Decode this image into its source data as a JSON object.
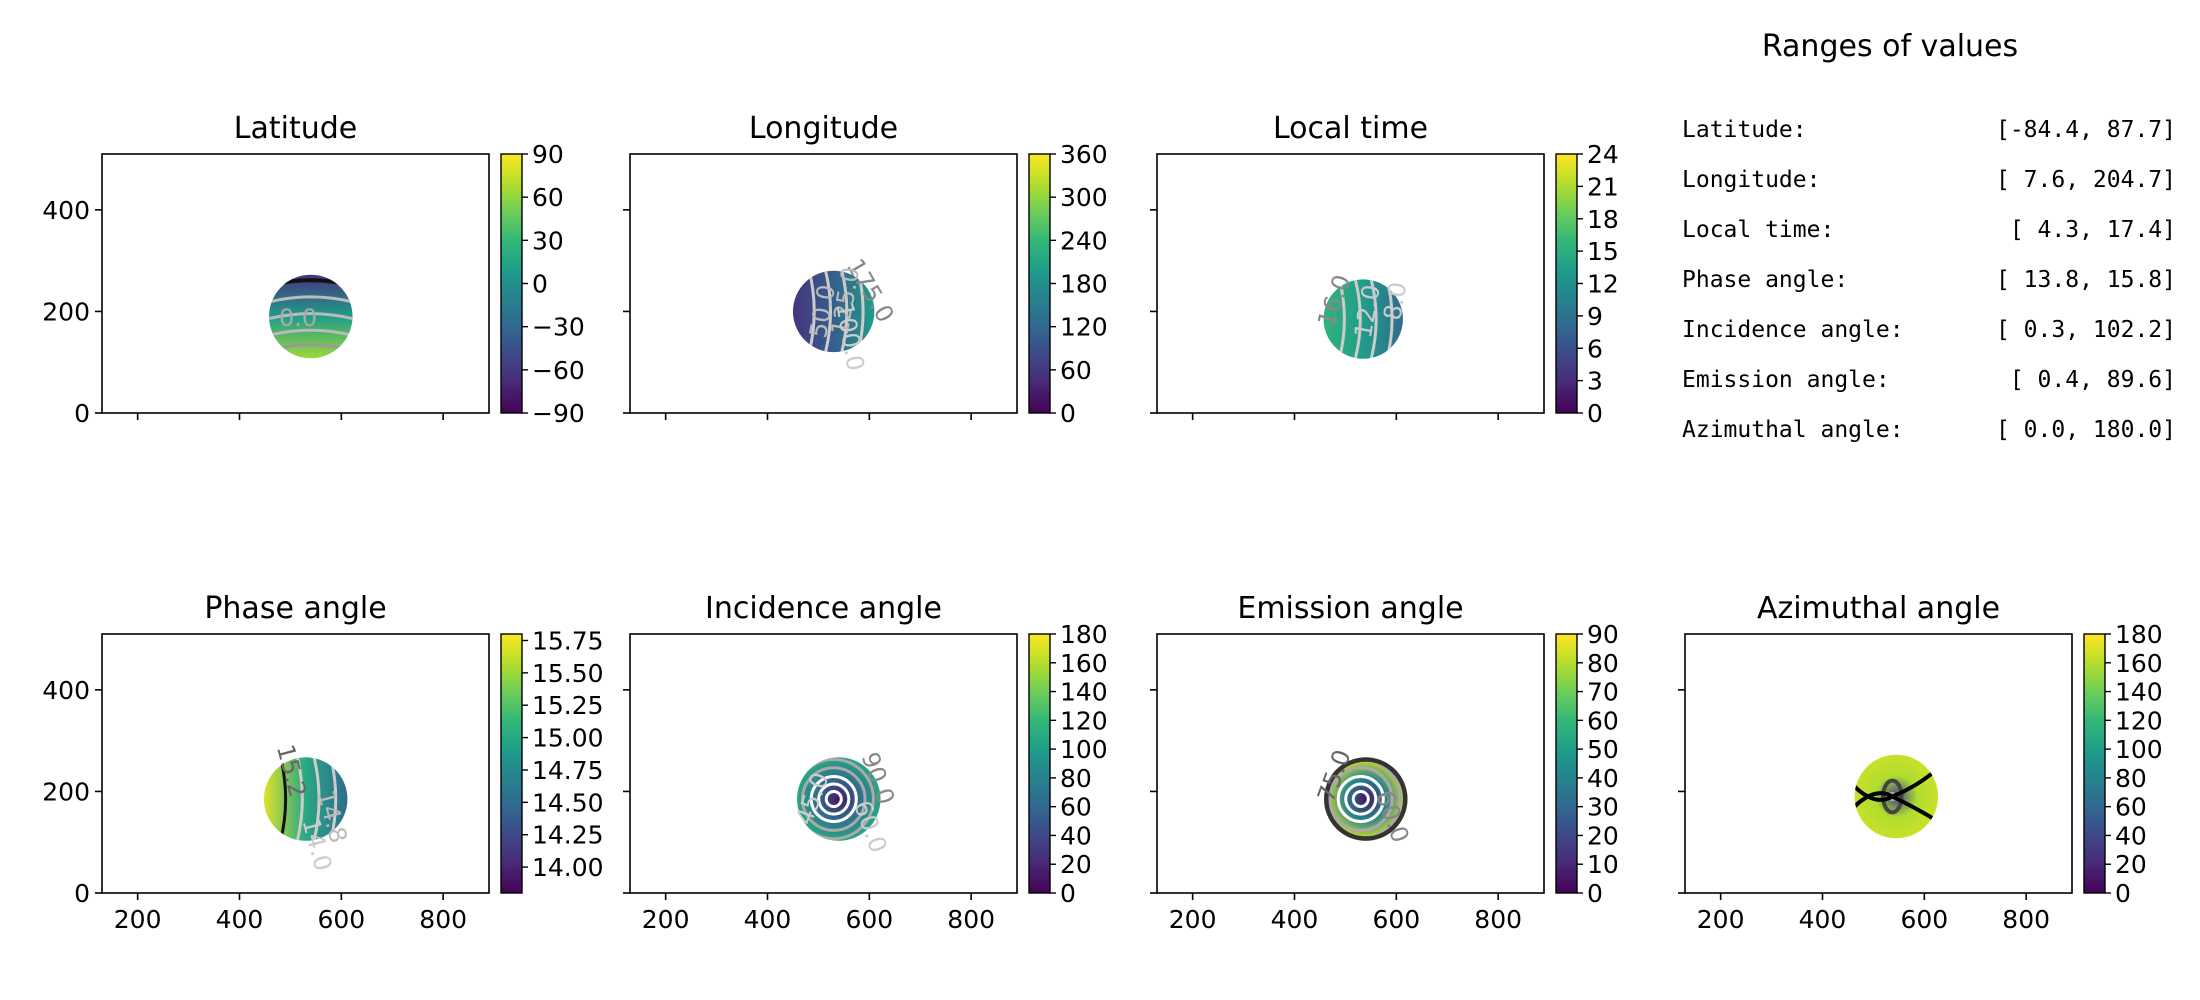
{
  "ranges_panel": {
    "title": "Ranges of values",
    "rows": [
      {
        "label": "Latitude:",
        "range": "[-84.4,  87.7]"
      },
      {
        "label": "Longitude:",
        "range": "[  7.6, 204.7]"
      },
      {
        "label": "Local time:",
        "range": "[  4.3,  17.4]"
      },
      {
        "label": "Phase angle:",
        "range": "[ 13.8,  15.8]"
      },
      {
        "label": "Incidence angle:",
        "range": "[  0.3, 102.2]"
      },
      {
        "label": "Emission angle:",
        "range": "[  0.4,  89.6]"
      },
      {
        "label": "Azimuthal angle:",
        "range": "[  0.0, 180.0]"
      }
    ]
  },
  "chart_data": [
    {
      "type": "heatmap",
      "title": "Latitude",
      "xlim": [
        130,
        890
      ],
      "ylim": [
        0,
        510
      ],
      "xticks": [
        200,
        400,
        600,
        800
      ],
      "yticks": [
        0,
        200,
        400
      ],
      "x_ticklabels_visible": false,
      "y_ticklabels_visible": true,
      "disk": {
        "center": [
          540,
          190
        ],
        "radius": 82
      },
      "colorbar": {
        "vmin": -90,
        "vmax": 90,
        "ticks": [
          -90,
          -60,
          -30,
          0,
          30,
          60,
          90
        ]
      },
      "contour_labels": [
        {
          "text": "0.0",
          "x": 515,
          "y": 185,
          "angle": 0,
          "color": "#aaaaaa"
        }
      ],
      "colormap": "viridis"
    },
    {
      "type": "heatmap",
      "title": "Longitude",
      "xlim": [
        130,
        890
      ],
      "ylim": [
        0,
        510
      ],
      "xticks": [
        200,
        400,
        600,
        800
      ],
      "yticks": [
        0,
        200,
        400
      ],
      "x_ticklabels_visible": false,
      "y_ticklabels_visible": false,
      "disk": {
        "center": [
          530,
          200
        ],
        "radius": 80
      },
      "colorbar": {
        "vmin": 0,
        "vmax": 360,
        "ticks": [
          0,
          60,
          120,
          180,
          240,
          300,
          360
        ]
      },
      "contour_labels": [
        {
          "text": "175.0",
          "x": 600,
          "y": 240,
          "angle": 60,
          "color": "#888888"
        },
        {
          "text": "125.0",
          "x": 555,
          "y": 220,
          "angle": -80,
          "color": "#bbbbbb"
        },
        {
          "text": "50.0",
          "x": 510,
          "y": 200,
          "angle": -80,
          "color": "#bbbbbb"
        },
        {
          "text": "100.0",
          "x": 560,
          "y": 150,
          "angle": 80,
          "color": "#cccccc"
        }
      ],
      "colormap": "viridis"
    },
    {
      "type": "heatmap",
      "title": "Local time",
      "xlim": [
        130,
        890
      ],
      "ylim": [
        0,
        510
      ],
      "xticks": [
        200,
        400,
        600,
        800
      ],
      "yticks": [
        0,
        200,
        400
      ],
      "x_ticklabels_visible": false,
      "y_ticklabels_visible": false,
      "disk": {
        "center": [
          535,
          185
        ],
        "radius": 78
      },
      "colorbar": {
        "vmin": 0,
        "vmax": 24,
        "ticks": [
          0,
          3,
          6,
          9,
          12,
          15,
          18,
          21,
          24
        ]
      },
      "contour_labels": [
        {
          "text": "16.0",
          "x": 480,
          "y": 220,
          "angle": -70,
          "color": "#888888"
        },
        {
          "text": "12.0",
          "x": 545,
          "y": 200,
          "angle": -80,
          "color": "#cccccc"
        },
        {
          "text": "8.0",
          "x": 600,
          "y": 220,
          "angle": -80,
          "color": "#cccccc"
        }
      ],
      "colormap": "viridis"
    },
    {
      "type": "heatmap",
      "title": "Phase angle",
      "xlim": [
        130,
        890
      ],
      "ylim": [
        0,
        510
      ],
      "xticks": [
        200,
        400,
        600,
        800
      ],
      "yticks": [
        0,
        200,
        400
      ],
      "x_ticklabels_visible": true,
      "y_ticklabels_visible": true,
      "disk": {
        "center": [
          530,
          185
        ],
        "radius": 82
      },
      "colorbar": {
        "vmin": 13.8,
        "vmax": 15.8,
        "ticks": [
          14.0,
          14.25,
          14.5,
          14.75,
          15.0,
          15.25,
          15.5,
          15.75
        ],
        "tick_labels": [
          "14.00",
          "14.25",
          "14.50",
          "14.75",
          "15.00",
          "15.25",
          "15.50",
          "15.75"
        ]
      },
      "contour_labels": [
        {
          "text": "15.2",
          "x": 500,
          "y": 240,
          "angle": 75,
          "color": "#666666"
        },
        {
          "text": "14.8",
          "x": 580,
          "y": 150,
          "angle": 75,
          "color": "#bbbbbb"
        },
        {
          "text": "14.0",
          "x": 550,
          "y": 95,
          "angle": 75,
          "color": "#cccccc"
        }
      ],
      "colormap": "viridis"
    },
    {
      "type": "heatmap",
      "title": "Incidence angle",
      "xlim": [
        130,
        890
      ],
      "ylim": [
        0,
        510
      ],
      "xticks": [
        200,
        400,
        600,
        800
      ],
      "yticks": [
        0,
        200,
        400
      ],
      "x_ticklabels_visible": true,
      "y_ticklabels_visible": false,
      "disk": {
        "center": [
          540,
          185
        ],
        "radius": 82
      },
      "colorbar": {
        "vmin": 0,
        "vmax": 180,
        "ticks": [
          0,
          20,
          40,
          60,
          80,
          100,
          120,
          140,
          160,
          180
        ]
      },
      "contour_labels": [
        {
          "text": "90.0",
          "x": 615,
          "y": 225,
          "angle": 70,
          "color": "#888888"
        },
        {
          "text": "45.0",
          "x": 490,
          "y": 185,
          "angle": -70,
          "color": "#cccccc"
        },
        {
          "text": "60.0",
          "x": 600,
          "y": 130,
          "angle": 70,
          "color": "#cccccc"
        }
      ],
      "colormap": "viridis"
    },
    {
      "type": "heatmap",
      "title": "Emission angle",
      "xlim": [
        130,
        890
      ],
      "ylim": [
        0,
        510
      ],
      "xticks": [
        200,
        400,
        600,
        800
      ],
      "yticks": [
        0,
        200,
        400
      ],
      "x_ticklabels_visible": true,
      "y_ticklabels_visible": false,
      "disk": {
        "center": [
          540,
          185
        ],
        "radius": 82
      },
      "colorbar": {
        "vmin": 0,
        "vmax": 90,
        "ticks": [
          0,
          10,
          20,
          30,
          40,
          50,
          60,
          70,
          80,
          90
        ]
      },
      "contour_labels": [
        {
          "text": "75.0",
          "x": 480,
          "y": 230,
          "angle": -70,
          "color": "#666666"
        },
        {
          "text": "60.0",
          "x": 590,
          "y": 150,
          "angle": 70,
          "color": "#888888"
        }
      ],
      "colormap": "viridis"
    },
    {
      "type": "heatmap",
      "title": "Azimuthal angle",
      "xlim": [
        130,
        890
      ],
      "ylim": [
        0,
        510
      ],
      "xticks": [
        200,
        400,
        600,
        800
      ],
      "yticks": [
        0,
        200,
        400
      ],
      "x_ticklabels_visible": true,
      "y_ticklabels_visible": false,
      "disk": {
        "center": [
          545,
          190
        ],
        "radius": 82
      },
      "colorbar": {
        "vmin": 0,
        "vmax": 180,
        "ticks": [
          0,
          20,
          40,
          60,
          80,
          100,
          120,
          140,
          160,
          180
        ]
      },
      "contour_labels": [],
      "colormap": "viridis"
    }
  ]
}
